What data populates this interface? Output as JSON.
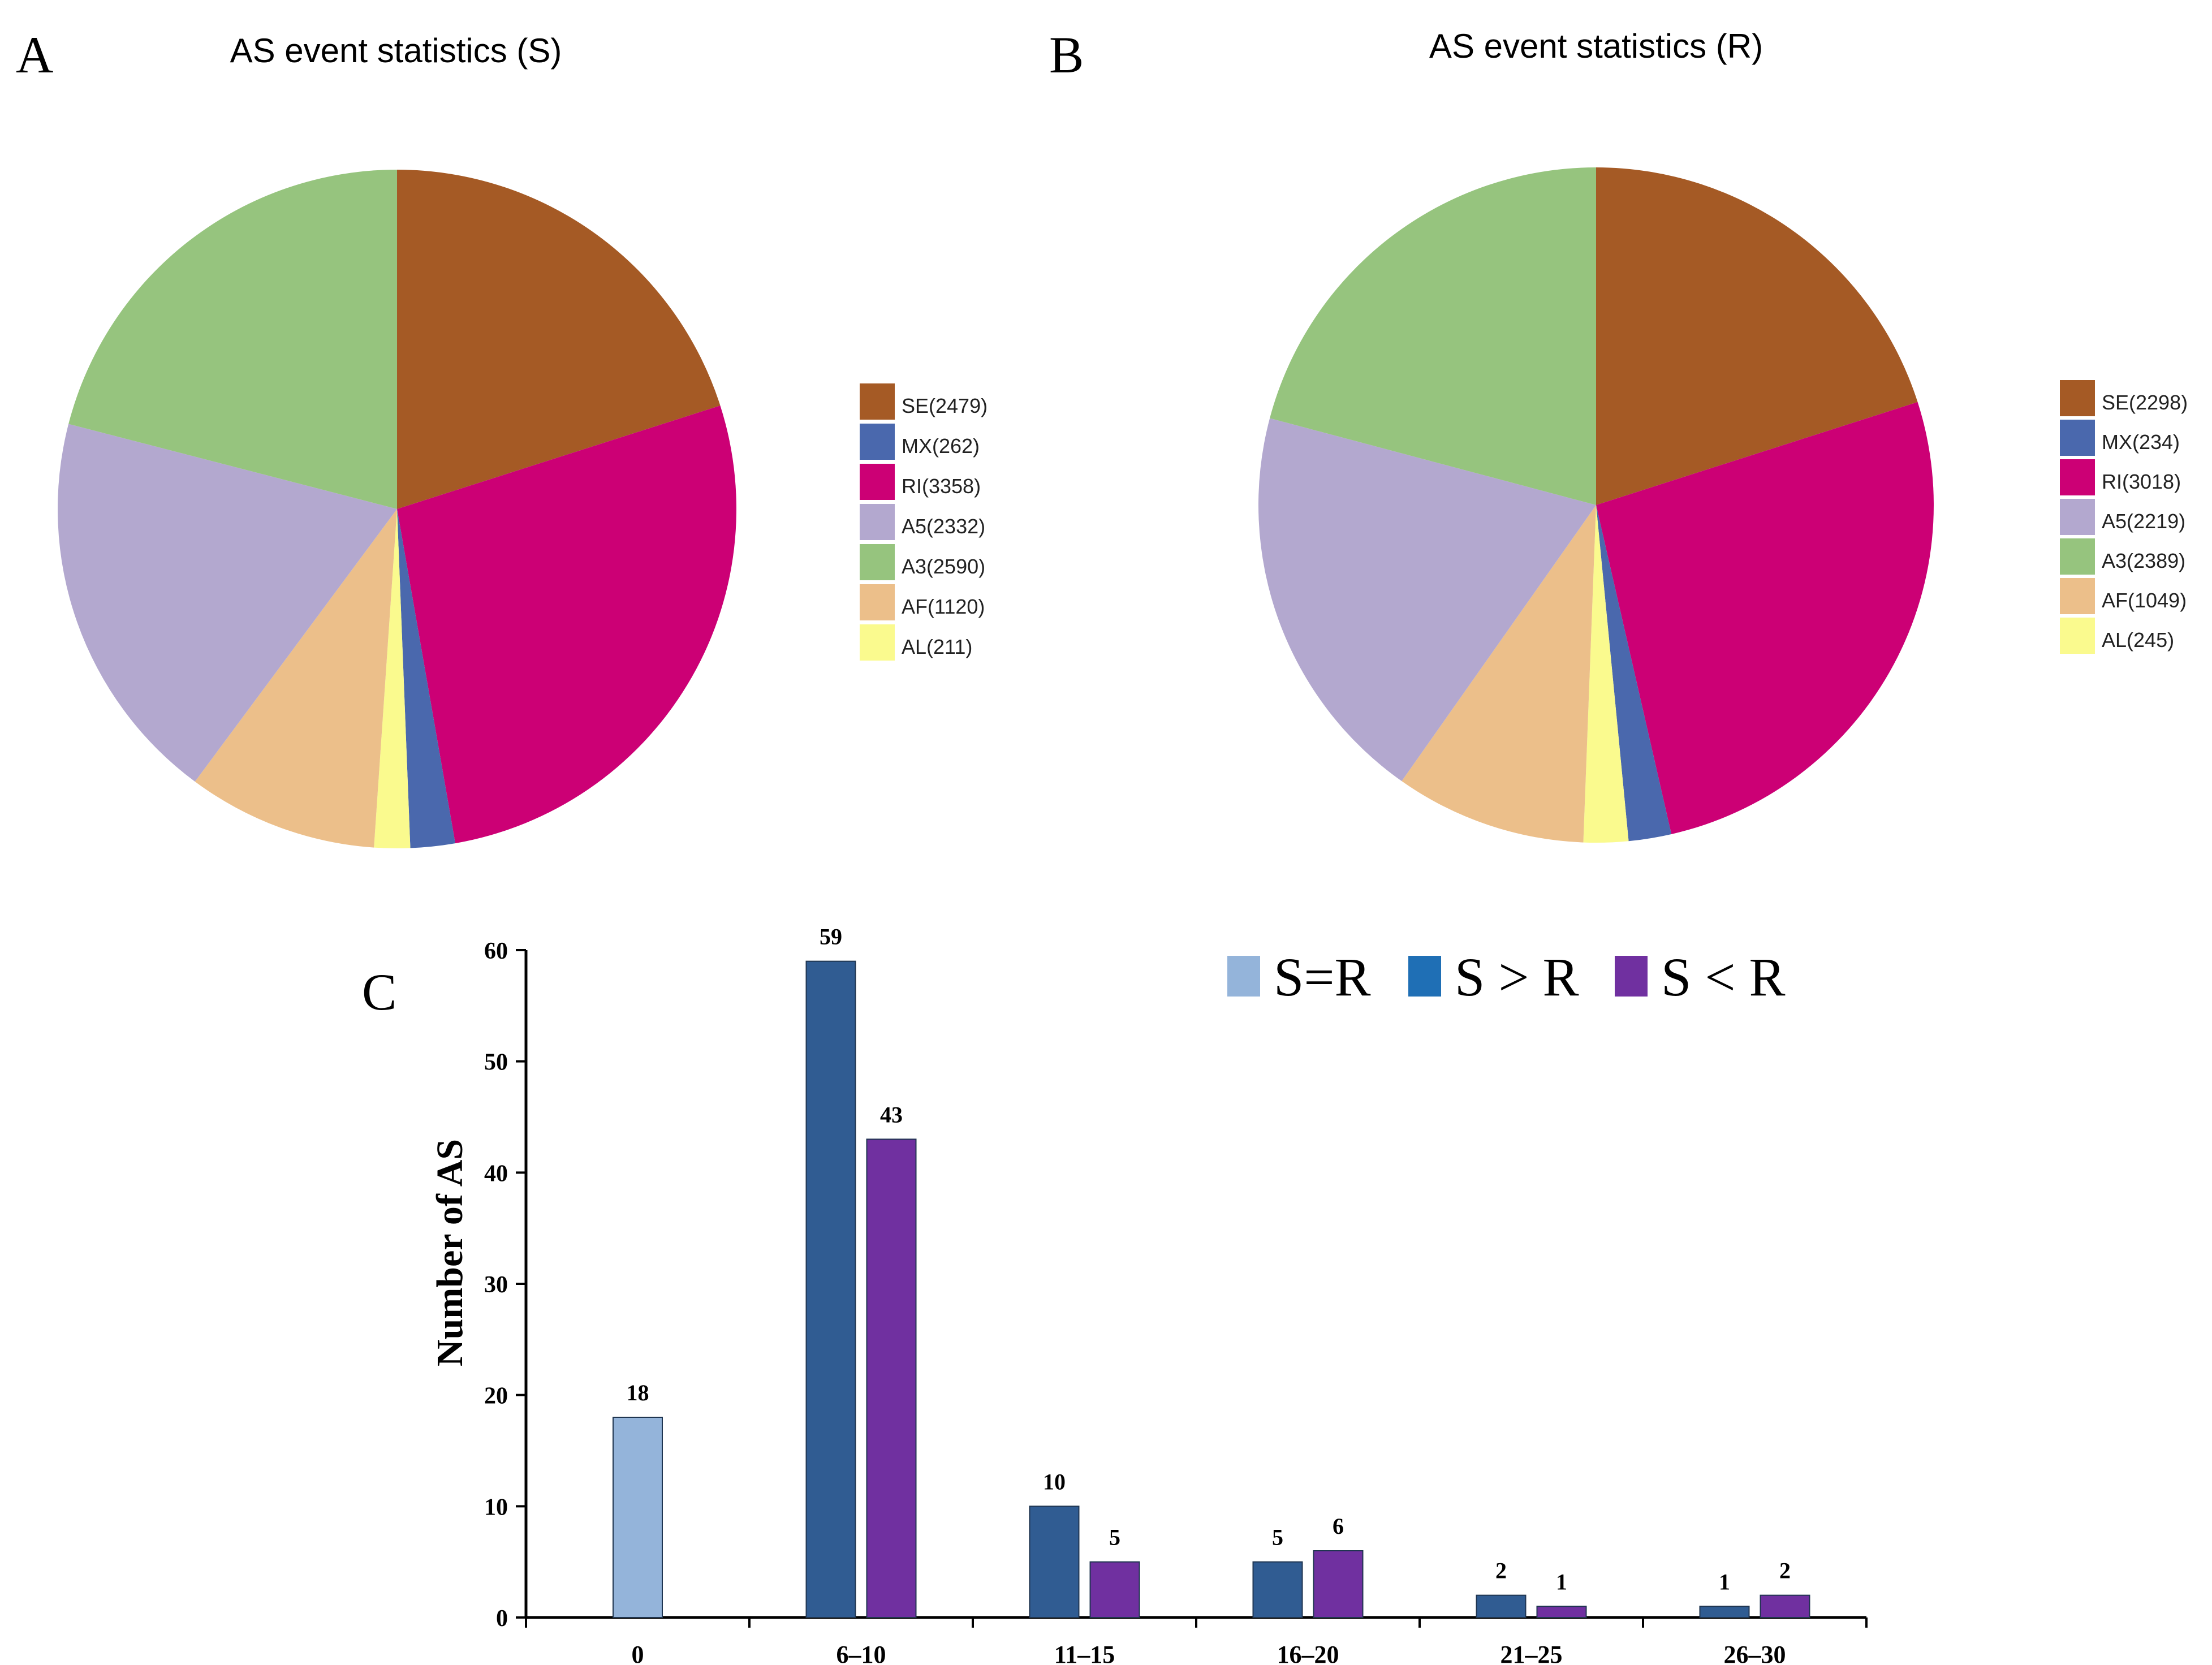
{
  "chart_data": [
    {
      "panel": "A",
      "type": "pie",
      "title": "AS event statistics (S)",
      "slices": [
        {
          "label": "SE(2479)",
          "name": "SE",
          "value": 2479,
          "color": "#a55a25"
        },
        {
          "label": "MX(262)",
          "name": "MX",
          "value": 262,
          "color": "#4a68ad"
        },
        {
          "label": "RI(3358)",
          "name": "RI",
          "value": 3358,
          "color": "#cc0075"
        },
        {
          "label": "A5(2332)",
          "name": "A5",
          "value": 2332,
          "color": "#b3a8cf"
        },
        {
          "label": "A3(2590)",
          "name": "A3",
          "value": 2590,
          "color": "#96c47e"
        },
        {
          "label": "AF(1120)",
          "name": "AF",
          "value": 1120,
          "color": "#ecbf8a"
        },
        {
          "label": "AL(211)",
          "name": "AL",
          "value": 211,
          "color": "#fafa8e"
        }
      ],
      "legend_position": "right"
    },
    {
      "panel": "B",
      "type": "pie",
      "title": "AS event statistics (R)",
      "slices": [
        {
          "label": "SE(2298)",
          "name": "SE",
          "value": 2298,
          "color": "#a55a25"
        },
        {
          "label": "MX(234)",
          "name": "MX",
          "value": 234,
          "color": "#4a68ad"
        },
        {
          "label": "RI(3018)",
          "name": "RI",
          "value": 3018,
          "color": "#cc0075"
        },
        {
          "label": "A5(2219)",
          "name": "A5",
          "value": 2219,
          "color": "#b3a8cf"
        },
        {
          "label": "A3(2389)",
          "name": "A3",
          "value": 2389,
          "color": "#96c47e"
        },
        {
          "label": "AF(1049)",
          "name": "AF",
          "value": 1049,
          "color": "#ecbf8a"
        },
        {
          "label": "AL(245)",
          "name": "AL",
          "value": 245,
          "color": "#fafa8e"
        }
      ],
      "legend_position": "right"
    },
    {
      "panel": "C",
      "type": "bar",
      "categories": [
        "0",
        "6–10",
        "11–15",
        "16–20",
        "21–25",
        "26–30"
      ],
      "series": [
        {
          "name": "S=R",
          "color": "#94b4da",
          "values": [
            18,
            null,
            null,
            null,
            null,
            null
          ]
        },
        {
          "name": "S > R",
          "color": "#305c92",
          "values": [
            null,
            59,
            10,
            5,
            2,
            1
          ]
        },
        {
          "name": "S < R",
          "color": "#7030a0",
          "values": [
            null,
            43,
            5,
            6,
            1,
            2
          ]
        }
      ],
      "legend_colors": [
        "#94b4da",
        "#1f6fb5",
        "#7030a0"
      ],
      "ylabel": "Number of AS",
      "xlabel": "",
      "ylim": [
        0,
        60
      ],
      "yticks": [
        0,
        10,
        20,
        30,
        40,
        50,
        60
      ],
      "grid": false,
      "legend_position": "top-right"
    }
  ]
}
